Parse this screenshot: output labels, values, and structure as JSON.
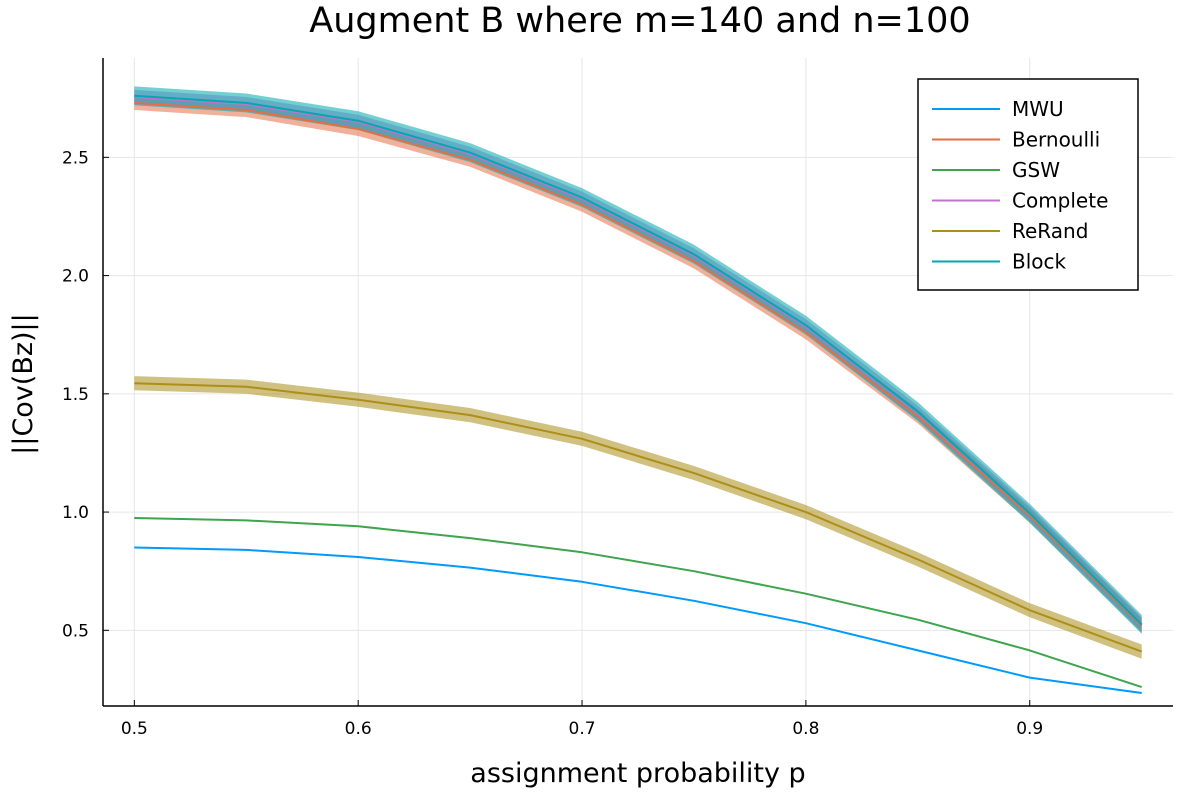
{
  "chart_data": {
    "type": "line",
    "title": "Augment B where m=140 and n=100",
    "xlabel": "assignment probability p",
    "ylabel": "||Cov(Bz)||",
    "x": [
      0.5,
      0.55,
      0.6,
      0.65,
      0.7,
      0.75,
      0.8,
      0.85,
      0.9,
      0.95
    ],
    "xticks": [
      0.5,
      0.6,
      0.7,
      0.8,
      0.9
    ],
    "xtick_labels": [
      "0.5",
      "0.6",
      "0.7",
      "0.8",
      "0.9"
    ],
    "yticks": [
      0.5,
      1.0,
      1.5,
      2.0,
      2.5
    ],
    "ytick_labels": [
      "0.5",
      "1.0",
      "1.5",
      "2.0",
      "2.5"
    ],
    "xlim": [
      0.486,
      0.964
    ],
    "ylim": [
      0.18,
      2.92
    ],
    "grid": true,
    "legend_position": "top-right",
    "series": [
      {
        "name": "MWU",
        "color": "#009AFA",
        "values": [
          0.85,
          0.84,
          0.81,
          0.765,
          0.705,
          0.625,
          0.53,
          0.415,
          0.3,
          0.235
        ]
      },
      {
        "name": "Bernoulli",
        "color": "#E36F47",
        "values": [
          2.73,
          2.7,
          2.62,
          2.49,
          2.3,
          2.06,
          1.76,
          1.405,
          0.985,
          0.52
        ],
        "band": 0.03
      },
      {
        "name": "GSW",
        "color": "#3EA44E",
        "values": [
          0.975,
          0.965,
          0.94,
          0.89,
          0.83,
          0.75,
          0.655,
          0.545,
          0.415,
          0.26
        ]
      },
      {
        "name": "Complete",
        "color": "#C371D1",
        "values": [
          2.755,
          2.725,
          2.65,
          2.515,
          2.325,
          2.085,
          1.785,
          1.42,
          0.995,
          0.525
        ],
        "band": 0.03
      },
      {
        "name": "ReRand",
        "color": "#AC8E18",
        "values": [
          1.545,
          1.53,
          1.475,
          1.41,
          1.31,
          1.165,
          1.0,
          0.8,
          0.585,
          0.41
        ],
        "band": 0.03
      },
      {
        "name": "Block",
        "color": "#00A9AD",
        "values": [
          2.76,
          2.73,
          2.655,
          2.52,
          2.33,
          2.09,
          1.79,
          1.425,
          0.995,
          0.525
        ],
        "band": 0.04
      }
    ]
  }
}
